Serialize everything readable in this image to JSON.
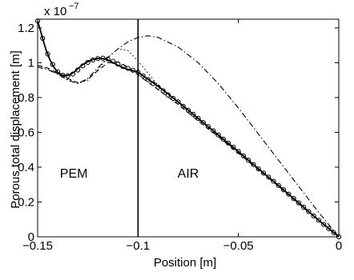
{
  "chart_data": {
    "type": "line",
    "title": "",
    "xlabel": "Position [m]",
    "ylabel": "Porous total  displacement [m]",
    "y_multiplier": "x 10",
    "y_multiplier_exp": "−7",
    "xlim": [
      -0.15,
      0
    ],
    "ylim": [
      0,
      1.25
    ],
    "x_ticks": [
      -0.15,
      -0.1,
      -0.05,
      0
    ],
    "x_tick_labels": [
      "−0.15",
      "−0.1",
      "−0.05",
      "0"
    ],
    "y_ticks": [
      0,
      0.2,
      0.4,
      0.6,
      0.8,
      1,
      1.2
    ],
    "y_tick_labels": [
      "0",
      "0.2",
      "0.4",
      "0.6",
      "0.8",
      "1",
      "1.2"
    ],
    "grid": false,
    "annotations": [
      {
        "text": "PEM",
        "x": -0.132,
        "y": 0.34
      },
      {
        "text": "AIR",
        "x": -0.075,
        "y": 0.34
      }
    ],
    "interface_x": -0.1,
    "series": [
      {
        "style": "solid",
        "x": [
          -0.15,
          -0.148,
          -0.146,
          -0.144,
          -0.142,
          -0.14,
          -0.138,
          -0.136,
          -0.134,
          -0.132,
          -0.13,
          -0.128,
          -0.126,
          -0.124,
          -0.122,
          -0.12,
          -0.118,
          -0.116,
          -0.114,
          -0.112,
          -0.11,
          -0.108,
          -0.106,
          -0.104,
          -0.102,
          -0.1,
          -0.09,
          -0.08,
          -0.07,
          -0.06,
          -0.05,
          -0.04,
          -0.03,
          -0.02,
          -0.01,
          0
        ],
        "y": [
          1.24,
          1.16,
          1.08,
          1.02,
          0.975,
          0.945,
          0.93,
          0.925,
          0.93,
          0.945,
          0.965,
          0.985,
          1.0,
          1.012,
          1.02,
          1.025,
          1.025,
          1.02,
          1.01,
          0.998,
          0.985,
          0.975,
          0.965,
          0.958,
          0.952,
          0.945,
          0.865,
          0.775,
          0.68,
          0.585,
          0.49,
          0.39,
          0.295,
          0.195,
          0.095,
          0.0
        ]
      },
      {
        "style": "markers",
        "x": [
          -0.15,
          -0.1475,
          -0.145,
          -0.1425,
          -0.14,
          -0.1375,
          -0.135,
          -0.1325,
          -0.13,
          -0.1275,
          -0.125,
          -0.1225,
          -0.12,
          -0.1175,
          -0.115,
          -0.1125,
          -0.11,
          -0.1075,
          -0.105,
          -0.1025,
          -0.1,
          -0.0975,
          -0.095,
          -0.0925,
          -0.09,
          -0.0875,
          -0.085,
          -0.0825,
          -0.08,
          -0.0775,
          -0.075,
          -0.0725,
          -0.07,
          -0.0675,
          -0.065,
          -0.0625,
          -0.06,
          -0.0575,
          -0.055,
          -0.0525,
          -0.05,
          -0.0475,
          -0.045,
          -0.0425,
          -0.04,
          -0.0375,
          -0.035,
          -0.0325,
          -0.03,
          -0.0275,
          -0.025,
          -0.0225,
          -0.02,
          -0.0175,
          -0.015,
          -0.0125,
          -0.01,
          -0.0075,
          -0.005,
          -0.0025,
          0
        ],
        "y": [
          1.24,
          1.14,
          1.05,
          0.99,
          0.948,
          0.928,
          0.925,
          0.935,
          0.958,
          0.982,
          1.002,
          1.016,
          1.024,
          1.026,
          1.021,
          1.008,
          0.992,
          0.978,
          0.967,
          0.957,
          0.945,
          0.925,
          0.903,
          0.88,
          0.86,
          0.838,
          0.815,
          0.795,
          0.775,
          0.75,
          0.727,
          0.704,
          0.68,
          0.656,
          0.633,
          0.609,
          0.585,
          0.561,
          0.538,
          0.514,
          0.49,
          0.465,
          0.44,
          0.415,
          0.39,
          0.366,
          0.343,
          0.319,
          0.295,
          0.27,
          0.245,
          0.22,
          0.195,
          0.17,
          0.145,
          0.12,
          0.095,
          0.071,
          0.047,
          0.024,
          0.0
        ]
      },
      {
        "style": "dashed",
        "x": [
          -0.15,
          -0.145,
          -0.14,
          -0.135,
          -0.13,
          -0.125,
          -0.12,
          -0.115,
          -0.11,
          -0.105,
          -0.1,
          -0.09,
          -0.08,
          -0.07,
          -0.06,
          -0.05,
          -0.04,
          -0.03,
          -0.02,
          -0.01,
          0
        ],
        "y": [
          0.985,
          0.97,
          0.94,
          0.91,
          0.885,
          0.905,
          0.955,
          1.0,
          1.005,
          0.975,
          0.93,
          0.845,
          0.76,
          0.665,
          0.575,
          0.48,
          0.385,
          0.29,
          0.19,
          0.095,
          0.0
        ]
      },
      {
        "style": "dashdot",
        "x": [
          -0.15,
          -0.145,
          -0.14,
          -0.135,
          -0.13,
          -0.125,
          -0.12,
          -0.115,
          -0.11,
          -0.105,
          -0.1,
          -0.095,
          -0.09,
          -0.08,
          -0.07,
          -0.06,
          -0.05,
          -0.04,
          -0.03,
          -0.02,
          -0.01,
          0
        ],
        "y": [
          0.975,
          0.96,
          0.935,
          0.9,
          0.88,
          0.91,
          0.97,
          1.03,
          1.08,
          1.12,
          1.145,
          1.155,
          1.145,
          1.09,
          1.0,
          0.88,
          0.74,
          0.59,
          0.44,
          0.29,
          0.14,
          0.0
        ]
      },
      {
        "style": "dotted",
        "x": [
          -0.15,
          -0.145,
          -0.14,
          -0.135,
          -0.13,
          -0.125,
          -0.12,
          -0.115,
          -0.11,
          -0.105,
          -0.1,
          -0.095,
          -0.09,
          -0.08,
          -0.07,
          -0.06,
          -0.05,
          -0.04,
          -0.03,
          -0.02,
          -0.01,
          0
        ],
        "y": [
          0.985,
          0.965,
          0.935,
          0.905,
          0.88,
          0.9,
          0.96,
          1.03,
          1.08,
          1.07,
          1.01,
          0.94,
          0.87,
          0.77,
          0.675,
          0.58,
          0.485,
          0.39,
          0.29,
          0.195,
          0.095,
          0.0
        ]
      }
    ]
  }
}
